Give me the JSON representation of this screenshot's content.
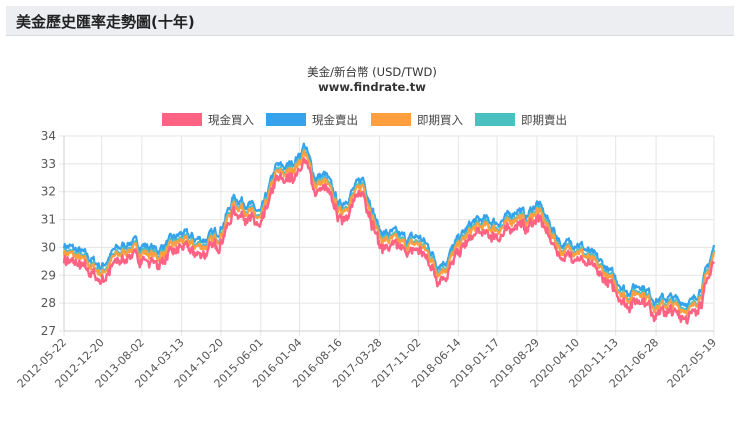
{
  "page": {
    "title": "美金歷史匯率走勢圖(十年)"
  },
  "chart_data": {
    "type": "line",
    "title": "美金/新台幣 (USD/TWD)",
    "subtitle": "www.findrate.tw",
    "legend_position": "top",
    "grid": true,
    "ylim": [
      27,
      34
    ],
    "yticks": [
      "27",
      "28",
      "29",
      "30",
      "31",
      "32",
      "33",
      "34"
    ],
    "xticks": [
      "2012-05-22",
      "2012-12-20",
      "2013-08-02",
      "2014-03-13",
      "2014-10-20",
      "2015-06-01",
      "2016-01-04",
      "2016-08-16",
      "2017-03-28",
      "2017-11-02",
      "2018-06-14",
      "2019-01-17",
      "2019-08-29",
      "2020-04-10",
      "2020-11-13",
      "2021-06-28",
      "2022-05-19"
    ],
    "x_start": "2012-05-22",
    "x_end": "2022-05-19",
    "spot_buy_keypoints": [
      [
        "2012-05-22",
        29.6
      ],
      [
        "2012-09-01",
        29.3
      ],
      [
        "2012-12-20",
        28.8
      ],
      [
        "2013-03-01",
        29.4
      ],
      [
        "2013-06-01",
        29.7
      ],
      [
        "2013-08-02",
        29.6
      ],
      [
        "2013-11-01",
        29.4
      ],
      [
        "2014-01-01",
        29.7
      ],
      [
        "2014-03-13",
        30.0
      ],
      [
        "2014-06-01",
        29.8
      ],
      [
        "2014-08-01",
        29.8
      ],
      [
        "2014-10-20",
        30.2
      ],
      [
        "2015-01-01",
        31.3
      ],
      [
        "2015-03-15",
        31.1
      ],
      [
        "2015-06-01",
        30.7
      ],
      [
        "2015-08-25",
        32.4
      ],
      [
        "2015-11-01",
        32.4
      ],
      [
        "2016-01-04",
        32.8
      ],
      [
        "2016-02-01",
        33.2
      ],
      [
        "2016-04-01",
        32.0
      ],
      [
        "2016-06-01",
        32.1
      ],
      [
        "2016-08-16",
        31.0
      ],
      [
        "2016-10-01",
        31.3
      ],
      [
        "2016-12-25",
        32.0
      ],
      [
        "2017-03-28",
        30.1
      ],
      [
        "2017-05-01",
        30.0
      ],
      [
        "2017-07-01",
        30.0
      ],
      [
        "2017-09-01",
        29.8
      ],
      [
        "2017-11-02",
        29.9
      ],
      [
        "2018-01-01",
        29.5
      ],
      [
        "2018-02-15",
        28.9
      ],
      [
        "2018-04-01",
        29.0
      ],
      [
        "2018-06-14",
        29.8
      ],
      [
        "2018-09-01",
        30.4
      ],
      [
        "2018-11-01",
        30.5
      ],
      [
        "2019-01-17",
        30.4
      ],
      [
        "2019-03-01",
        30.5
      ],
      [
        "2019-05-15",
        30.9
      ],
      [
        "2019-07-01",
        30.6
      ],
      [
        "2019-08-29",
        31.1
      ],
      [
        "2019-10-01",
        30.8
      ],
      [
        "2019-12-01",
        30.1
      ],
      [
        "2020-01-15",
        29.6
      ],
      [
        "2020-04-10",
        29.7
      ],
      [
        "2020-06-01",
        29.4
      ],
      [
        "2020-08-01",
        29.1
      ],
      [
        "2020-11-13",
        28.4
      ],
      [
        "2021-01-15",
        27.9
      ],
      [
        "2021-04-01",
        28.2
      ],
      [
        "2021-06-28",
        27.6
      ],
      [
        "2021-09-01",
        27.7
      ],
      [
        "2021-11-01",
        27.6
      ],
      [
        "2022-01-15",
        27.5
      ],
      [
        "2022-03-15",
        28.2
      ],
      [
        "2022-05-19",
        29.5
      ]
    ],
    "series": [
      {
        "name": "現金買入",
        "color": "#ff6384",
        "offset": 0.0
      },
      {
        "name": "現金賣出",
        "color": "#36a2eb",
        "offset": 0.5
      },
      {
        "name": "即期買入",
        "color": "#ff9f40",
        "offset": 0.25
      },
      {
        "name": "即期賣出",
        "color": "#4bc0c0",
        "offset": 0.32
      }
    ]
  }
}
